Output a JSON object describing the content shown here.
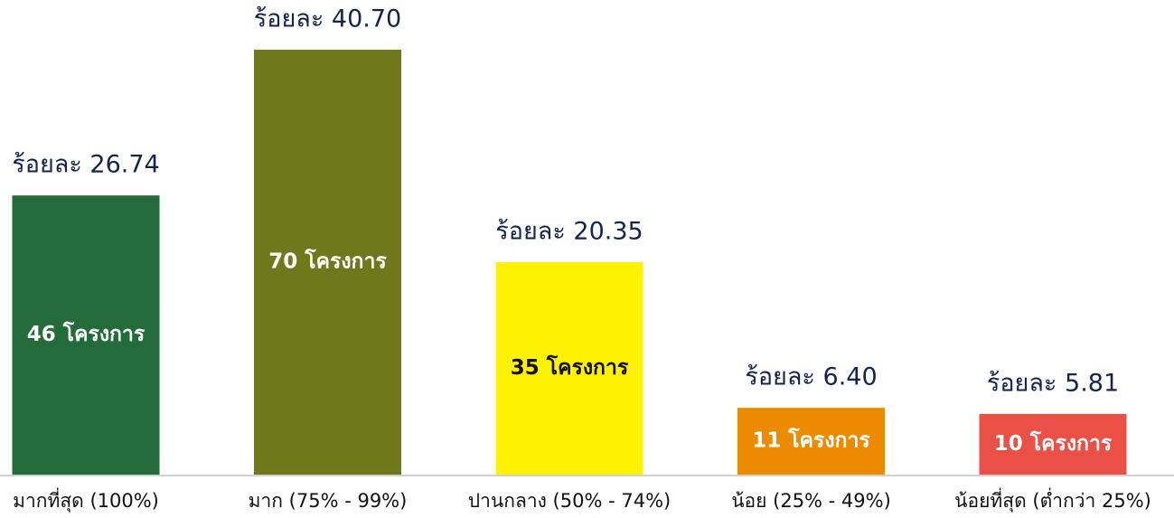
{
  "chart_data": {
    "type": "bar",
    "categories": [
      "มากที่สุด (100%)",
      "มาก (75% - 99%)",
      "ปานกลาง (50% - 74%)",
      "น้อย (25% - 49%)",
      "น้อยที่สุด (ต่ำกว่า 25%)"
    ],
    "values": [
      26.74,
      40.7,
      20.35,
      6.4,
      5.81
    ],
    "value_labels": [
      "ร้อยละ 26.74",
      "ร้อยละ 40.70",
      "ร้อยละ 20.35",
      "ร้อยละ 6.40",
      "ร้อยละ 5.81"
    ],
    "counts": [
      46,
      70,
      35,
      11,
      10
    ],
    "count_labels": [
      "46 โครงการ",
      "70 โครงการ",
      "35 โครงการ",
      "11 โครงการ",
      "10 โครงการ"
    ],
    "colors": [
      "#236b38",
      "#6f781b",
      "#fff200",
      "#ec8b00",
      "#ea5045"
    ]
  }
}
